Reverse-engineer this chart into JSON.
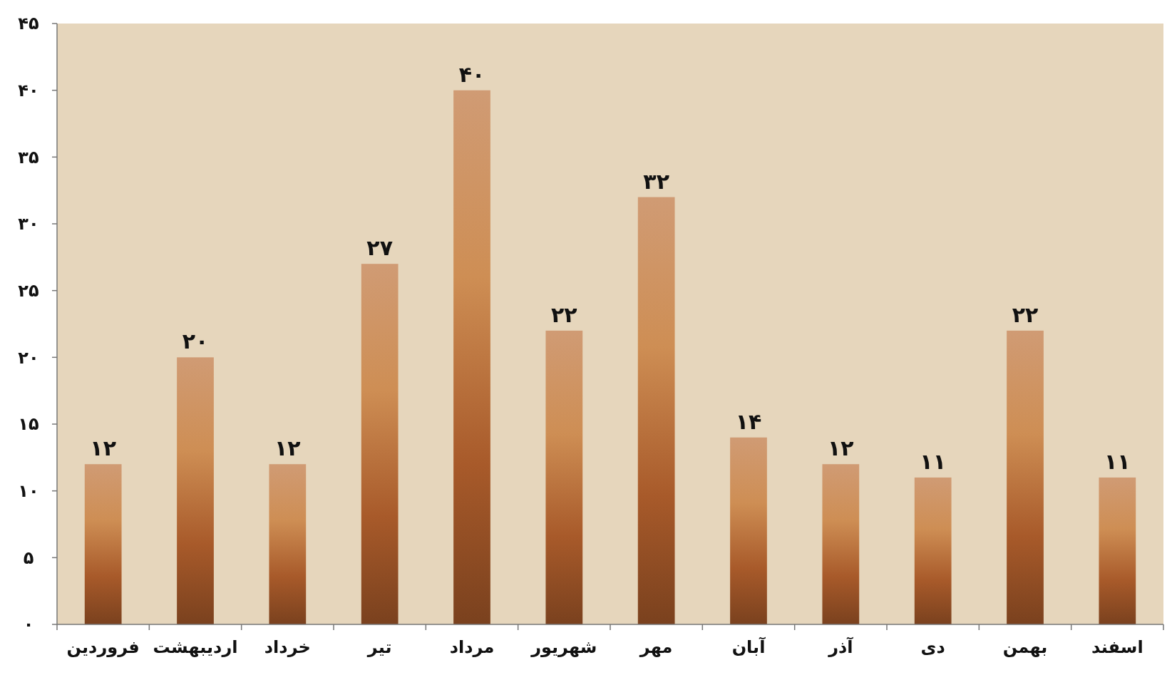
{
  "chart_data": {
    "type": "bar",
    "categories": [
      "فروردین",
      "اردیبهشت",
      "خرداد",
      "تیر",
      "مرداد",
      "شهریور",
      "مهر",
      "آبان",
      "آذر",
      "دی",
      "بهمن",
      "اسفند"
    ],
    "values": [
      12,
      20,
      12,
      27,
      40,
      22,
      32,
      14,
      12,
      11,
      22,
      11
    ],
    "value_labels": [
      "۱۲",
      "۲۰",
      "۱۲",
      "۲۷",
      "۴۰",
      "۲۲",
      "۳۲",
      "۱۴",
      "۱۲",
      "۱۱",
      "۲۲",
      "۱۱"
    ],
    "color": "#a85a2a",
    "ylim": [
      0,
      45
    ],
    "yticks": [
      {
        "value": 0,
        "label": "۰"
      },
      {
        "value": 5,
        "label": "۵"
      },
      {
        "value": 10,
        "label": "۱۰"
      },
      {
        "value": 15,
        "label": "۱۵"
      },
      {
        "value": 20,
        "label": "۲۰"
      },
      {
        "value": 25,
        "label": "۲۵"
      },
      {
        "value": 30,
        "label": "۳۰"
      },
      {
        "value": 35,
        "label": "۳۵"
      },
      {
        "value": 40,
        "label": "۴۰"
      },
      {
        "value": 45,
        "label": "۴۵"
      }
    ],
    "grid": false
  }
}
